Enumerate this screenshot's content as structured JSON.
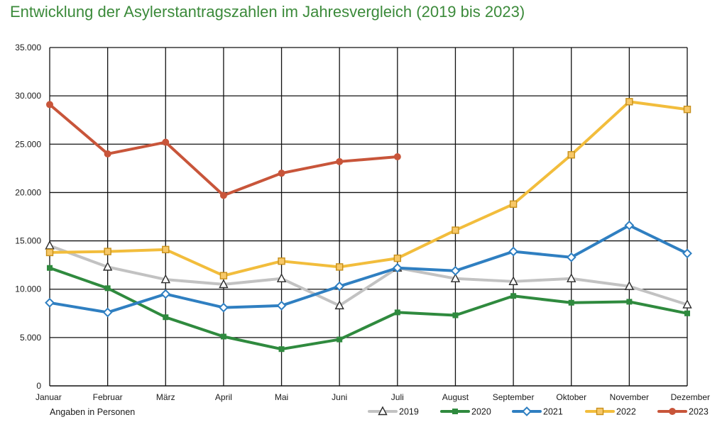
{
  "title": "Entwicklung der Asylerstantragszahlen im Jahresvergleich (2019 bis 2023)",
  "note": "Angaben in Personen",
  "colors": {
    "2019": "#c2c2c2",
    "2020": "#2f8a3e",
    "2021": "#2f7fc1",
    "2022": "#f2bd3c",
    "2023": "#c8553a"
  },
  "chart_data": {
    "type": "line",
    "title": "Entwicklung der Asylerstantragszahlen im Jahresvergleich (2019 bis 2023)",
    "xlabel": "",
    "ylabel": "",
    "ylim": [
      0,
      35000
    ],
    "grid": true,
    "legend": "bottom-right",
    "y_ticks": [
      0,
      5000,
      10000,
      15000,
      20000,
      25000,
      30000,
      35000
    ],
    "y_tick_labels": [
      "0",
      "5.000",
      "10.000",
      "15.000",
      "20.000",
      "25.000",
      "30.000",
      "35.000"
    ],
    "categories": [
      "Januar",
      "Februar",
      "März",
      "April",
      "Mai",
      "Juni",
      "Juli",
      "August",
      "September",
      "Oktober",
      "November",
      "Dezember"
    ],
    "series": [
      {
        "name": "2019",
        "marker": "triangle",
        "values": [
          14500,
          12300,
          11000,
          10500,
          11100,
          8300,
          12200,
          11100,
          10800,
          11100,
          10300,
          8400
        ]
      },
      {
        "name": "2020",
        "marker": "square-small",
        "values": [
          12200,
          10100,
          7100,
          5100,
          3800,
          4800,
          7600,
          7300,
          9300,
          8600,
          8700,
          7500
        ]
      },
      {
        "name": "2021",
        "marker": "diamond",
        "values": [
          8600,
          7600,
          9500,
          8100,
          8300,
          10300,
          12200,
          11900,
          13900,
          13300,
          16600,
          13700
        ]
      },
      {
        "name": "2022",
        "marker": "square",
        "values": [
          13800,
          13900,
          14100,
          11400,
          12900,
          12300,
          13200,
          16100,
          18800,
          23900,
          29400,
          28600
        ]
      },
      {
        "name": "2023",
        "marker": "circle",
        "values": [
          29100,
          24000,
          25200,
          19700,
          22000,
          23200,
          23700,
          null,
          null,
          null,
          null,
          null
        ]
      }
    ]
  }
}
